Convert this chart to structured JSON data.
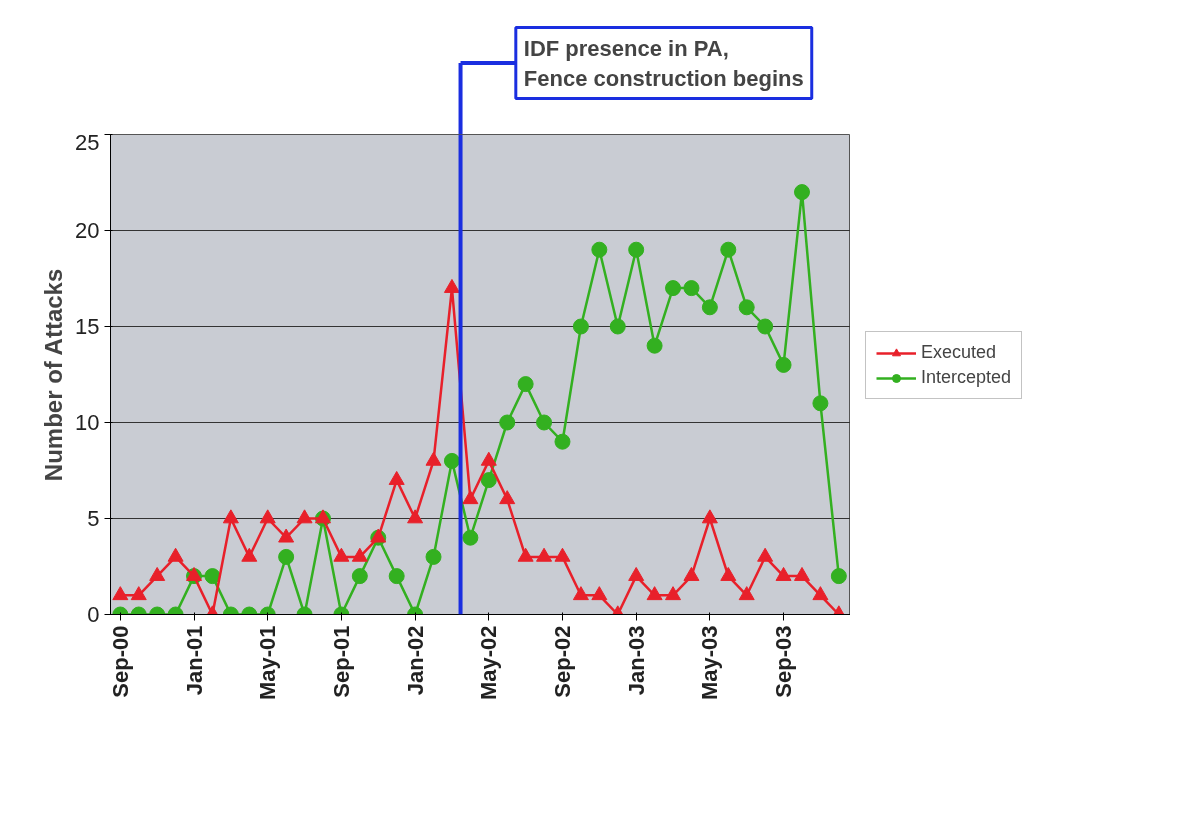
{
  "chart_data": {
    "type": "line",
    "ylabel": "Number of Attacks",
    "x": [
      "2000-09",
      "2000-10",
      "2000-11",
      "2000-12",
      "2001-01",
      "2001-02",
      "2001-03",
      "2001-04",
      "2001-05",
      "2001-06",
      "2001-07",
      "2001-08",
      "2001-09",
      "2001-10",
      "2001-11",
      "2001-12",
      "2002-01",
      "2002-02",
      "2002-03",
      "2002-04",
      "2002-05",
      "2002-06",
      "2002-07",
      "2002-08",
      "2002-09",
      "2002-10",
      "2002-11",
      "2002-12",
      "2003-01",
      "2003-02",
      "2003-03",
      "2003-04",
      "2003-05",
      "2003-06",
      "2003-07",
      "2003-08",
      "2003-09",
      "2003-10",
      "2003-11",
      "2003-12"
    ],
    "series": [
      {
        "name": "Executed",
        "color": "#e8202a",
        "marker": "triangle",
        "values": [
          1,
          1,
          2,
          3,
          2,
          0,
          5,
          3,
          5,
          4,
          5,
          5,
          3,
          3,
          4,
          7,
          5,
          8,
          17,
          6,
          8,
          6,
          3,
          3,
          3,
          1,
          1,
          0,
          2,
          1,
          1,
          2,
          5,
          2,
          1,
          3,
          2,
          2,
          1,
          0
        ]
      },
      {
        "name": "Intercepted",
        "color": "#33b020",
        "marker": "circle",
        "values": [
          0,
          0,
          0,
          0,
          2,
          2,
          0,
          0,
          0,
          3,
          0,
          5,
          0,
          2,
          4,
          2,
          0,
          3,
          8,
          4,
          7,
          10,
          12,
          10,
          9,
          15,
          19,
          15,
          19,
          14,
          17,
          17,
          16,
          19,
          16,
          15,
          13,
          22,
          11,
          2
        ]
      }
    ],
    "xlim": [
      "2000-08-15",
      "2003-12-20"
    ],
    "xticks": [
      {
        "value": "2000-09",
        "label": "Sep-00"
      },
      {
        "value": "2001-01",
        "label": "Jan-01"
      },
      {
        "value": "2001-05",
        "label": "May-01"
      },
      {
        "value": "2001-09",
        "label": "Sep-01"
      },
      {
        "value": "2002-01",
        "label": "Jan-02"
      },
      {
        "value": "2002-05",
        "label": "May-02"
      },
      {
        "value": "2002-09",
        "label": "Sep-02"
      },
      {
        "value": "2003-01",
        "label": "Jan-03"
      },
      {
        "value": "2003-05",
        "label": "May-03"
      },
      {
        "value": "2003-09",
        "label": "Sep-03"
      }
    ],
    "ylim": [
      0,
      25
    ],
    "yticks": [
      0,
      5,
      10,
      15,
      20,
      25
    ],
    "ref_lines": [
      {
        "axis": "x",
        "value": "2002-03-15",
        "label": "IDF presence in PA,\nFence construction begins",
        "color": "#1a2ee0"
      }
    ],
    "grid": "y",
    "legend": "right",
    "line_style": "solid"
  }
}
